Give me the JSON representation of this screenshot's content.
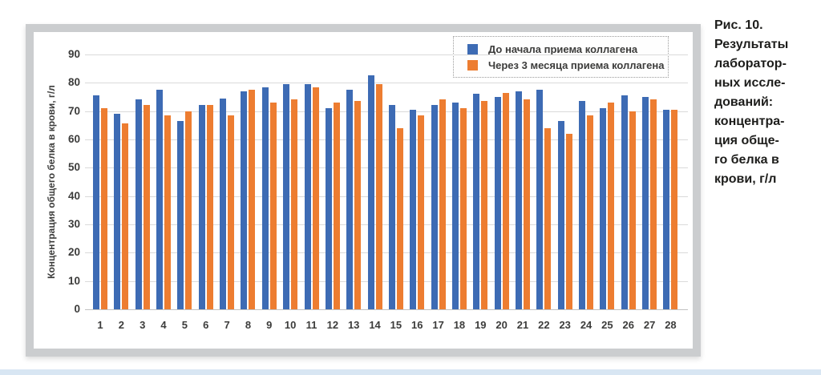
{
  "figure_caption": {
    "lines": [
      "Рис. 10.",
      "Результаты",
      "лаборатор-",
      "ных иссле-",
      "дований:",
      "концентра-",
      "ция обще-",
      "го белка в",
      "крови, г/л"
    ]
  },
  "chart_data": {
    "type": "bar",
    "title": "",
    "xlabel": "",
    "ylabel": "Концентрация общего белка в крови, г/л",
    "ylim": [
      0,
      90
    ],
    "y_ticks": [
      0,
      10,
      20,
      30,
      40,
      50,
      60,
      70,
      80,
      90
    ],
    "grid": true,
    "legend_position": "top-right",
    "categories": [
      "1",
      "2",
      "3",
      "4",
      "5",
      "6",
      "7",
      "8",
      "9",
      "10",
      "11",
      "12",
      "13",
      "14",
      "15",
      "16",
      "17",
      "18",
      "19",
      "20",
      "21",
      "22",
      "23",
      "24",
      "25",
      "26",
      "27",
      "28"
    ],
    "series": [
      {
        "name": "До начала приема коллагена",
        "color": "#3D6BB4",
        "values": [
          75.5,
          69,
          74,
          77.5,
          66.5,
          72,
          74.5,
          77,
          78.5,
          79.5,
          79.5,
          71,
          77.5,
          82.5,
          72,
          70.5,
          72,
          73,
          76,
          75,
          77,
          77.5,
          66.5,
          73.5,
          71,
          75.5,
          75,
          70.5
        ]
      },
      {
        "name": "Через 3 месяца приема коллагена",
        "color": "#ED7D31",
        "values": [
          71,
          65.5,
          72,
          68.5,
          70,
          72,
          68.5,
          77.5,
          73,
          74,
          78.5,
          73,
          73.5,
          79.5,
          64,
          68.5,
          74,
          71,
          73.5,
          76.5,
          74,
          64,
          62,
          68.5,
          73,
          70,
          74,
          70.5
        ]
      }
    ]
  },
  "colors": {
    "frame": "#CBCDCF",
    "grid": "#DADADA",
    "axis_text": "#3C3C3B",
    "caption_text": "#1D1D1B",
    "panel_bg": "#FFFFFF",
    "bottom_strip": "#D8E6F3"
  }
}
